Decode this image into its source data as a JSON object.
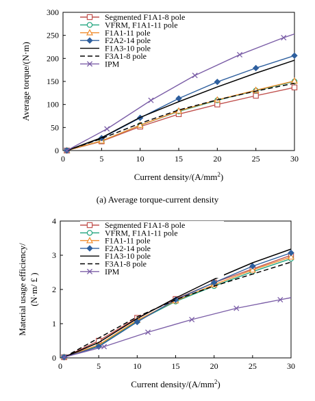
{
  "chart_data": [
    {
      "type": "line",
      "xlabel": "Current density/(A/mm",
      "xlabel_sup": "2",
      "xlabel_end": ")",
      "ylabel": "Average torque/(N·m)",
      "xlim": [
        0,
        30
      ],
      "ylim": [
        0,
        300
      ],
      "xticks": [
        "0",
        "5",
        "10",
        "15",
        "20",
        "25",
        "30"
      ],
      "yticks": [
        "0",
        "50",
        "100",
        "150",
        "200",
        "250",
        "300"
      ],
      "grid": false,
      "legend_position": "top-left",
      "caption": "(a) Average torque-current density",
      "series": [
        {
          "name": "Segmented F1A1-8 pole",
          "color": "#c0504d",
          "marker": "square",
          "dash": "solid",
          "x": [
            0.5,
            5,
            10,
            15,
            20,
            25,
            30
          ],
          "y": [
            0,
            20,
            52,
            79,
            100,
            119,
            137
          ]
        },
        {
          "name": "VFRM, F1A1-11 pole",
          "color": "#1fa37c",
          "marker": "circle",
          "dash": "solid",
          "x": [
            0.5,
            5,
            10,
            15,
            20,
            25,
            30
          ],
          "y": [
            0,
            21,
            55,
            85,
            109,
            130,
            150
          ]
        },
        {
          "name": "F1A1-11 pole",
          "color": "#f08c2c",
          "marker": "triangle",
          "dash": "solid",
          "x": [
            0.5,
            5,
            10,
            15,
            20,
            25,
            30
          ],
          "y": [
            0,
            21,
            55,
            86,
            110,
            131,
            151
          ]
        },
        {
          "name": "F2A2-14 pole",
          "color": "#2e5f9e",
          "marker": "diamond",
          "dash": "solid",
          "x": [
            0.5,
            5,
            10,
            15,
            20,
            25,
            30
          ],
          "y": [
            0,
            27,
            71,
            113,
            149,
            179,
            206
          ]
        },
        {
          "name": "F1A3-10 pole",
          "color": "#000000",
          "marker": "none",
          "dash": "solid",
          "x": [
            0.5,
            5,
            10,
            15,
            20,
            25,
            30
          ],
          "y": [
            0,
            28,
            72,
            106,
            138,
            168,
            196
          ]
        },
        {
          "name": "F3A1-8 pole",
          "color": "#000000",
          "marker": "none",
          "dash": "dashed",
          "x": [
            0.5,
            5,
            10,
            15,
            20,
            25,
            30
          ],
          "y": [
            0,
            26,
            59,
            88,
            110,
            129,
            146
          ]
        },
        {
          "name": "IPM",
          "color": "#7b5ea7",
          "marker": "x",
          "dash": "solid",
          "x": [
            0.5,
            5.7,
            11.4,
            17.1,
            22.9,
            28.6,
            30
          ],
          "y": [
            0,
            47,
            109,
            163,
            208,
            245,
            253
          ]
        }
      ]
    },
    {
      "type": "line",
      "xlabel": "Current density/(A/mm",
      "xlabel_sup": "2",
      "xlabel_end": ")",
      "ylabel": "Material usage efficiency/",
      "ylabel2": "(N·m/ £ )",
      "xlim": [
        0,
        30
      ],
      "ylim": [
        0,
        4
      ],
      "xticks": [
        "0",
        "5",
        "10",
        "15",
        "20",
        "25",
        "30"
      ],
      "yticks": [
        "0",
        "1",
        "2",
        "3",
        "4"
      ],
      "grid": false,
      "legend_position": "top-left",
      "series": [
        {
          "name": "Segmented F1A1-8 pole",
          "color": "#c0504d",
          "marker": "square",
          "dash": "solid",
          "x": [
            0.5,
            5,
            10,
            15,
            20,
            25,
            30
          ],
          "y": [
            0.02,
            0.5,
            1.17,
            1.72,
            2.2,
            2.6,
            3.0
          ]
        },
        {
          "name": "VFRM, F1A1-11 pole",
          "color": "#1fa37c",
          "marker": "circle",
          "dash": "solid",
          "x": [
            0.5,
            5,
            10,
            15,
            20,
            25,
            30
          ],
          "y": [
            0.02,
            0.35,
            1.07,
            1.65,
            2.1,
            2.52,
            2.9
          ]
        },
        {
          "name": "F1A1-11 pole",
          "color": "#f08c2c",
          "marker": "triangle",
          "dash": "solid",
          "x": [
            0.5,
            5,
            10,
            15,
            20,
            25,
            30
          ],
          "y": [
            0.02,
            0.38,
            1.1,
            1.67,
            2.14,
            2.57,
            2.95
          ]
        },
        {
          "name": "F2A2-14 pole",
          "color": "#2e5f9e",
          "marker": "diamond",
          "dash": "solid",
          "x": [
            0.5,
            5,
            10,
            15,
            20,
            25,
            30
          ],
          "y": [
            0.02,
            0.33,
            1.05,
            1.7,
            2.2,
            2.68,
            3.07
          ]
        },
        {
          "name": "F1A3-10 pole",
          "color": "#000000",
          "marker": "none",
          "dash": "solid",
          "x": [
            0.5,
            5,
            10,
            15,
            20,
            25,
            30
          ],
          "y": [
            0.02,
            0.45,
            1.15,
            1.75,
            2.3,
            2.78,
            3.18
          ]
        },
        {
          "name": "F3A1-8 pole",
          "color": "#000000",
          "marker": "none",
          "dash": "dashed",
          "x": [
            0.5,
            5,
            10,
            15,
            20,
            25,
            30
          ],
          "y": [
            0.02,
            0.58,
            1.2,
            1.7,
            2.1,
            2.45,
            2.8
          ]
        },
        {
          "name": "IPM",
          "color": "#7b5ea7",
          "marker": "x",
          "dash": "solid",
          "x": [
            0.5,
            5.7,
            11.4,
            17.1,
            22.9,
            28.6,
            30
          ],
          "y": [
            0.02,
            0.33,
            0.75,
            1.12,
            1.45,
            1.7,
            1.76
          ]
        }
      ]
    }
  ]
}
